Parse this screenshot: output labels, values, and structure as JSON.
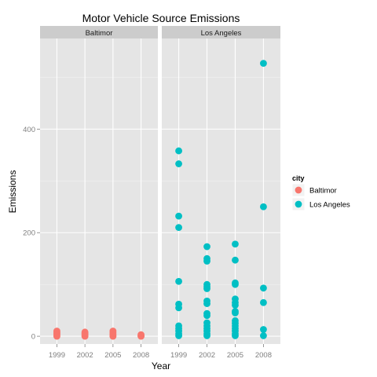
{
  "chart_data": {
    "type": "scatter",
    "title": "Motor Vehicle Source Emissions",
    "xlabel": "Year",
    "ylabel": "Emissions",
    "x_ticks": [
      "1999",
      "2002",
      "2005",
      "2008"
    ],
    "y_ticks": [
      0,
      200,
      400
    ],
    "ylim": [
      -15,
      575
    ],
    "grid": true,
    "legend_placement": "right",
    "legend_title": "city",
    "facets": [
      {
        "label": "Baltimor",
        "color": "#F8766D",
        "points": [
          [
            1999,
            0
          ],
          [
            1999,
            2
          ],
          [
            1999,
            4
          ],
          [
            1999,
            6
          ],
          [
            1999,
            8
          ],
          [
            1999,
            10
          ],
          [
            2002,
            0
          ],
          [
            2002,
            2
          ],
          [
            2002,
            4
          ],
          [
            2002,
            6
          ],
          [
            2002,
            8
          ],
          [
            2005,
            0
          ],
          [
            2005,
            2
          ],
          [
            2005,
            4
          ],
          [
            2005,
            7
          ],
          [
            2005,
            10
          ],
          [
            2008,
            0
          ],
          [
            2008,
            1
          ],
          [
            2008,
            3
          ]
        ]
      },
      {
        "label": "Los Angeles",
        "color": "#00BFC4",
        "points": [
          [
            1999,
            358
          ],
          [
            1999,
            333
          ],
          [
            1999,
            232
          ],
          [
            1999,
            210
          ],
          [
            1999,
            106
          ],
          [
            1999,
            62
          ],
          [
            1999,
            55
          ],
          [
            1999,
            20
          ],
          [
            1999,
            15
          ],
          [
            1999,
            10
          ],
          [
            1999,
            5
          ],
          [
            1999,
            1
          ],
          [
            2002,
            173
          ],
          [
            2002,
            150
          ],
          [
            2002,
            145
          ],
          [
            2002,
            100
          ],
          [
            2002,
            96
          ],
          [
            2002,
            92
          ],
          [
            2002,
            68
          ],
          [
            2002,
            63
          ],
          [
            2002,
            44
          ],
          [
            2002,
            40
          ],
          [
            2002,
            26
          ],
          [
            2002,
            20
          ],
          [
            2002,
            15
          ],
          [
            2002,
            10
          ],
          [
            2002,
            5
          ],
          [
            2002,
            1
          ],
          [
            2005,
            178
          ],
          [
            2005,
            147
          ],
          [
            2005,
            103
          ],
          [
            2005,
            100
          ],
          [
            2005,
            72
          ],
          [
            2005,
            65
          ],
          [
            2005,
            60
          ],
          [
            2005,
            48
          ],
          [
            2005,
            45
          ],
          [
            2005,
            30
          ],
          [
            2005,
            25
          ],
          [
            2005,
            20
          ],
          [
            2005,
            15
          ],
          [
            2005,
            10
          ],
          [
            2005,
            5
          ],
          [
            2005,
            1
          ],
          [
            2008,
            527
          ],
          [
            2008,
            250
          ],
          [
            2008,
            93
          ],
          [
            2008,
            65
          ],
          [
            2008,
            13
          ],
          [
            2008,
            1
          ]
        ]
      }
    ]
  }
}
